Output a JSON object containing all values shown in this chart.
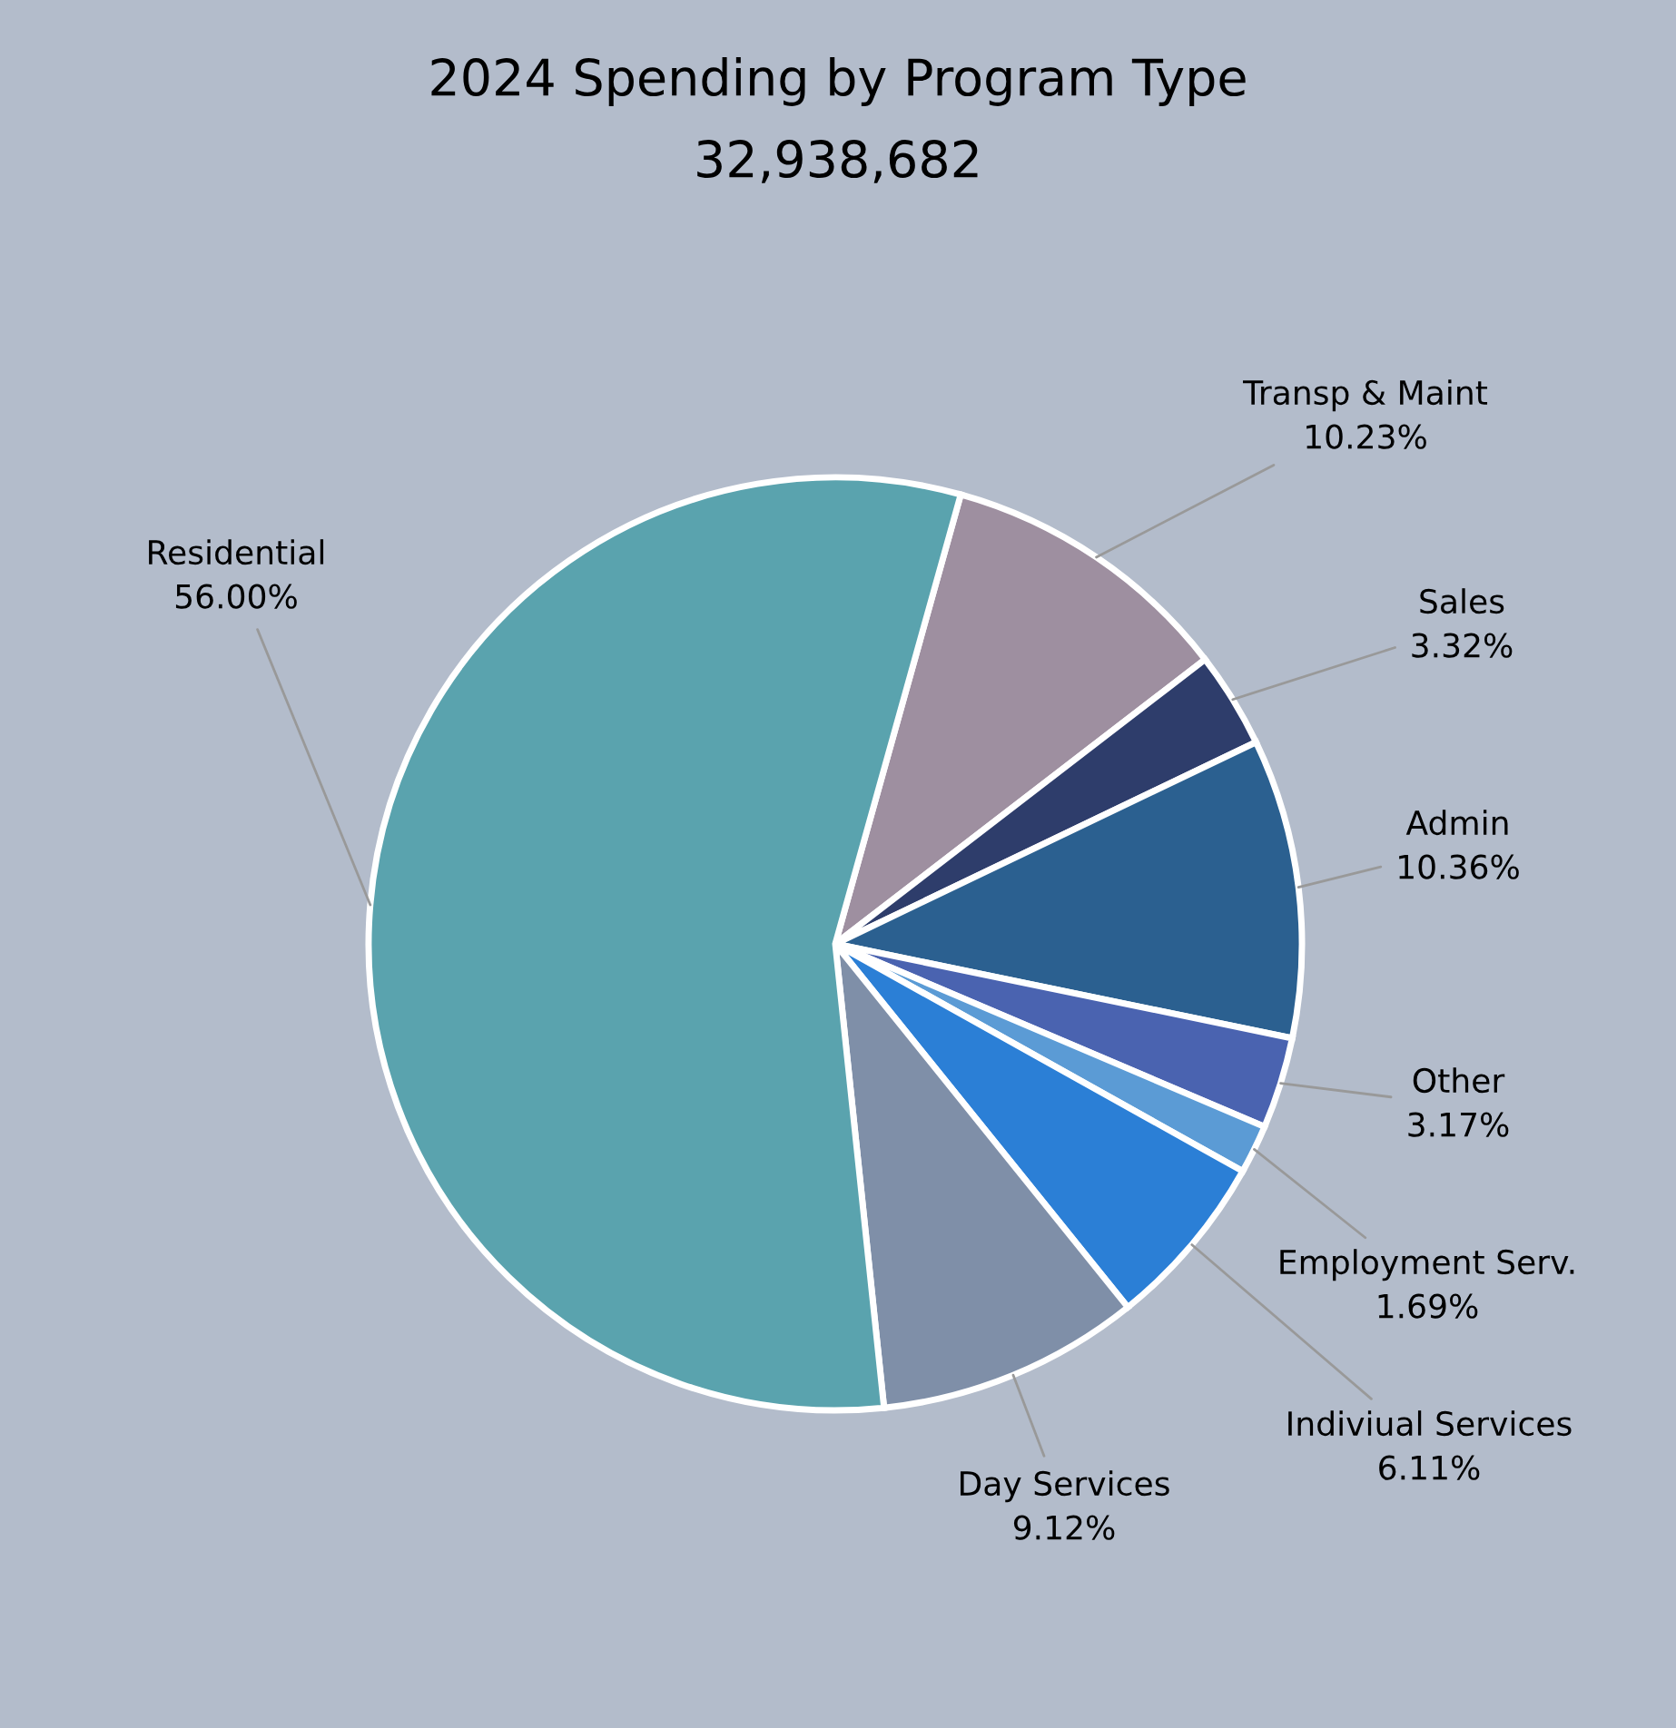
{
  "chart_data": {
    "type": "pie",
    "title": "2024 Spending by Program Type",
    "subtitle": "32,938,682",
    "categories": [
      "Transp & Maint",
      "Sales",
      "Admin",
      "Other",
      "Employment Serv.",
      "Indiviual Services",
      "Day Services",
      "Residential"
    ],
    "values": [
      10.23,
      3.32,
      10.36,
      3.17,
      1.69,
      6.11,
      9.12,
      56.0
    ],
    "value_labels": [
      "10.23%",
      "3.32%",
      "10.36%",
      "3.17%",
      "1.69%",
      "6.11%",
      "9.12%",
      "56.00%"
    ],
    "colors": [
      "#9e8fa0",
      "#2e3d6b",
      "#2b6090",
      "#4a63b0",
      "#5b9bd5",
      "#2b7fd6",
      "#7f8fa8",
      "#5aa3ae"
    ],
    "legend": false
  }
}
